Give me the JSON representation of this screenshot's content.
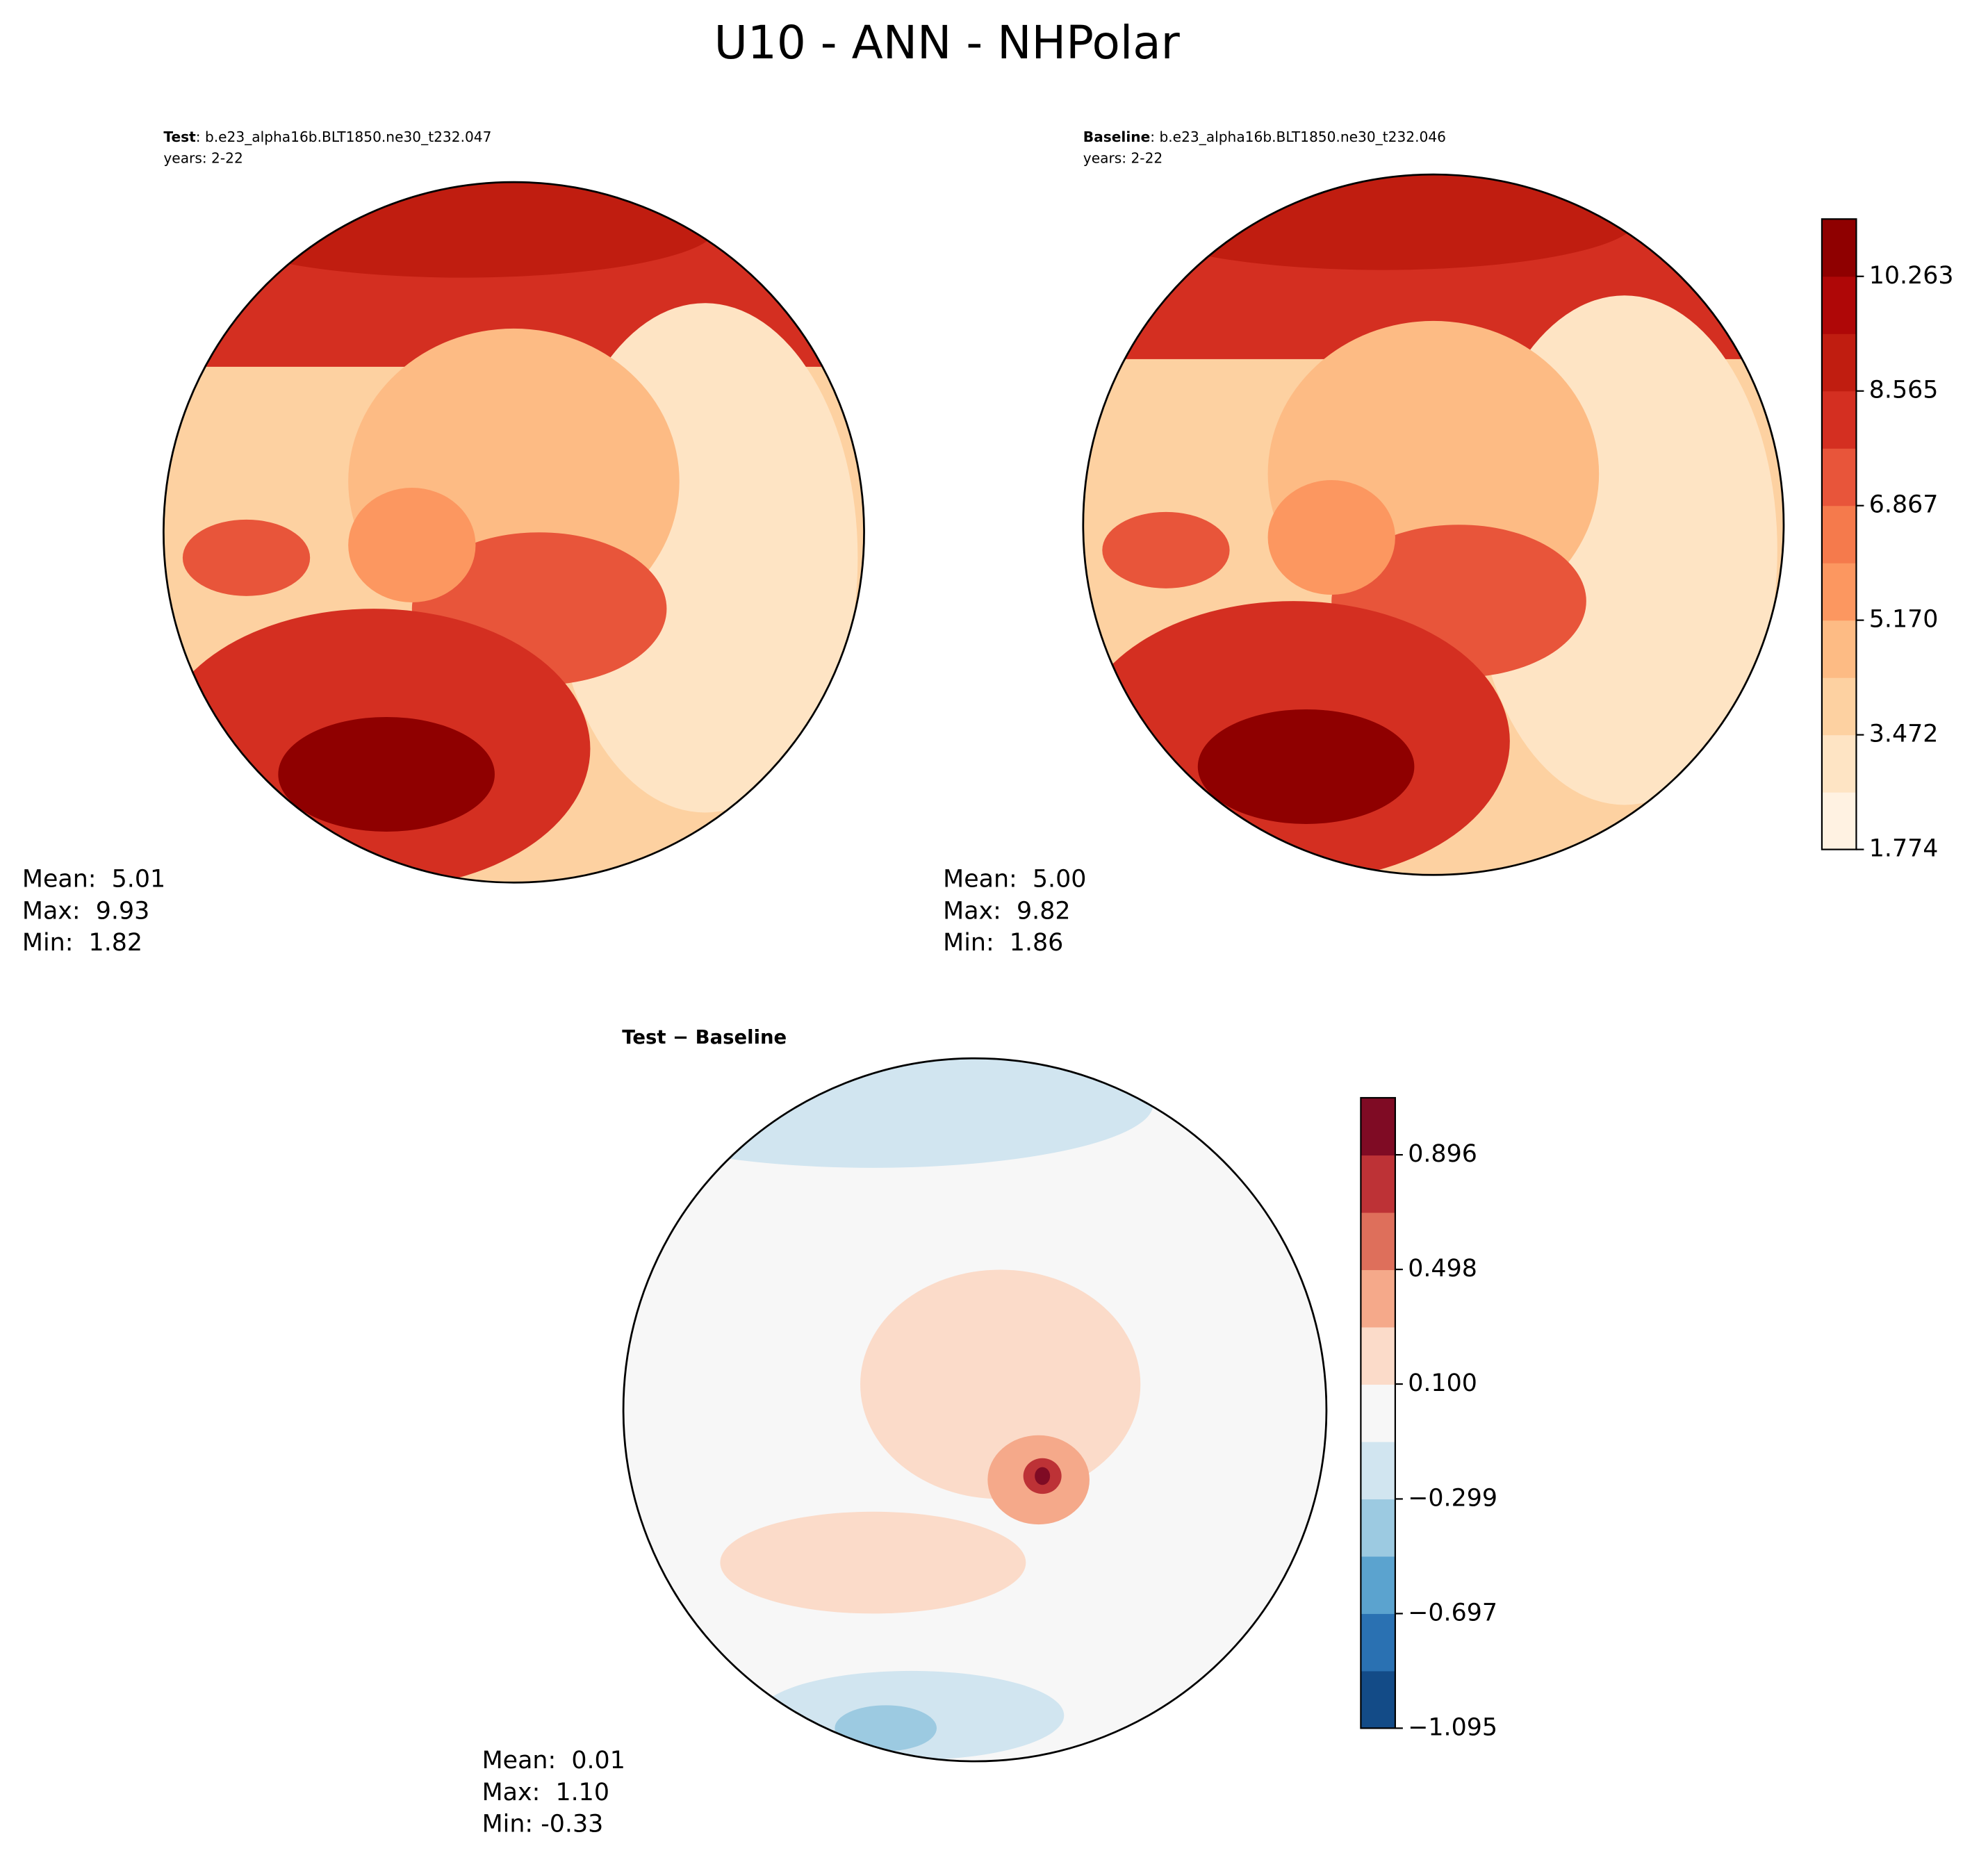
{
  "title": "U10 - ANN - NHPolar",
  "panels": [
    {
      "header_bold": "Test",
      "header_rest": ": b.e23_alpha16b.BLT1850.ne30_t232.047",
      "years": "years: 2-22",
      "stats": [
        "Mean:  5.01",
        "Max:  9.93",
        "Min:  1.82"
      ]
    },
    {
      "header_bold": "Baseline",
      "header_rest": ": b.e23_alpha16b.BLT1850.ne30_t232.046",
      "years": "years: 2-22",
      "stats": [
        "Mean:  5.00",
        "Max:  9.82",
        "Min:  1.86"
      ]
    },
    {
      "header_bold": "Test − Baseline",
      "stats": [
        "Mean:  0.01",
        "Max:  1.10",
        "Min: -0.33"
      ]
    }
  ],
  "colorbars": [
    {
      "lim": [
        1.774,
        11.112
      ],
      "ticks": [
        1.774,
        3.472,
        {
          "value": 5.17,
          "label": "5.170"
        },
        6.867,
        8.565,
        10.263
      ],
      "colors": [
        "#fff2e2",
        "#fee4c4",
        "#fdd1a1",
        "#fdbb84",
        "#fc9760",
        "#f57a4c",
        "#e8553a",
        "#d42f21",
        "#c01d10",
        "#af0707",
        "#8f0000"
      ]
    },
    {
      "lim": [
        -1.095,
        1.094
      ],
      "ticks": [
        {
          "value": -1.095,
          "label": "−1.095"
        },
        {
          "value": -0.697,
          "label": "−0.697"
        },
        {
          "value": -0.299,
          "label": "−0.299"
        },
        {
          "value": 0.1,
          "label": "0.100"
        },
        0.498,
        0.896
      ],
      "colors": [
        "#134b87",
        "#2a71b2",
        "#5ba3cf",
        "#9ccae1",
        "#d1e5f0",
        "#f7f7f7",
        "#fbdbc9",
        "#f5a98a",
        "#de6f5b",
        "#bd3236",
        "#7f0b24"
      ]
    }
  ]
}
